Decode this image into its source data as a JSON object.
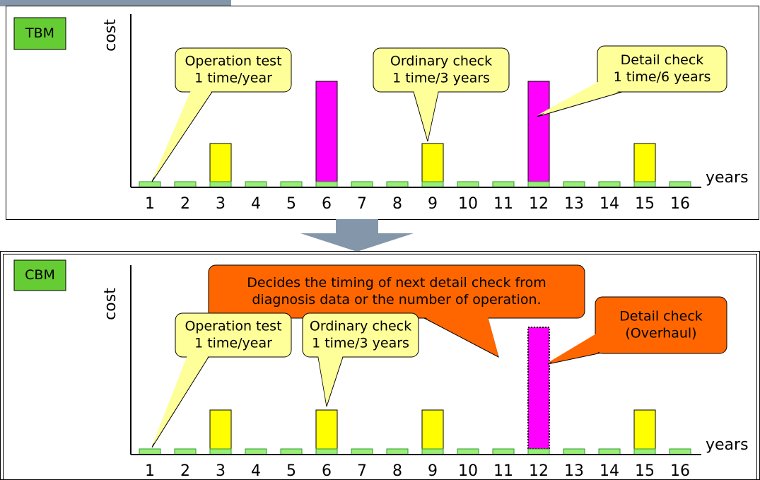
{
  "panels": [
    {
      "badge": "TBM",
      "y_label": "cost",
      "x_label": "years",
      "years": [
        1,
        2,
        3,
        4,
        5,
        6,
        7,
        8,
        9,
        10,
        11,
        12,
        13,
        14,
        15,
        16
      ],
      "callouts": [
        {
          "lines": [
            "Operation test",
            "1 time/year"
          ]
        },
        {
          "lines": [
            "Ordinary check",
            "1 time/3 years"
          ]
        },
        {
          "lines": [
            "Detail check",
            "1 time/6 years"
          ]
        }
      ]
    },
    {
      "badge": "CBM",
      "y_label": "cost",
      "x_label": "years",
      "years": [
        1,
        2,
        3,
        4,
        5,
        6,
        7,
        8,
        9,
        10,
        11,
        12,
        13,
        14,
        15,
        16
      ],
      "callouts": [
        {
          "lines": [
            "Decides the  timing of next detail check from",
            "diagnosis data or the number of operation."
          ]
        },
        {
          "lines": [
            "Detail check",
            "(Overhaul)"
          ]
        },
        {
          "lines": [
            "Operation test",
            "1 time/year"
          ]
        },
        {
          "lines": [
            "Ordinary check",
            "1 time/3 years"
          ]
        }
      ]
    }
  ]
}
